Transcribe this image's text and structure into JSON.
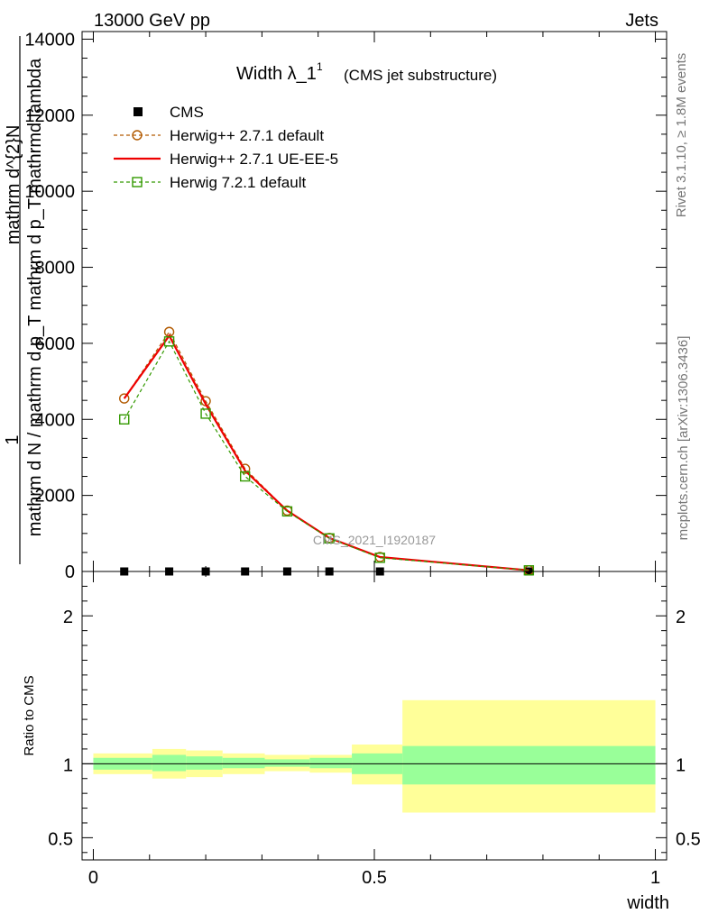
{
  "header": {
    "energy_label": "13000 GeV pp",
    "process_label": "Jets",
    "rivet_label": "Rivet 3.1.10, ≥ 1.8M events",
    "mcplots_label": "mcplots.cern.ch [arXiv:1306.3436]",
    "watermark": "CMS_2021_I1920187"
  },
  "title": {
    "main": "Width λ_1",
    "superscript": "1",
    "sub": "(CMS jet substructure)"
  },
  "ylabel": {
    "numerator_top": "1",
    "numerator": "mathrm d N / mathrm d p_T mathrm d p_T mathrmd lambda",
    "denominator": "mathrm d^{2}N"
  },
  "ratio_ylabel": "Ratio to CMS",
  "xlabel": "width",
  "colors": {
    "cms": "#000000",
    "herwig_default": "#b25a00",
    "herwig_ueee5": "#ee0000",
    "herwig721": "#339900",
    "band_inner": "#99ff99",
    "band_outer": "#ffff99"
  },
  "legend": [
    {
      "key": "cms",
      "label": "CMS"
    },
    {
      "key": "herwig_default",
      "label": "Herwig++ 2.7.1 default"
    },
    {
      "key": "herwig_ueee5",
      "label": "Herwig++ 2.7.1 UE-EE-5"
    },
    {
      "key": "herwig721",
      "label": "Herwig 7.2.1 default"
    }
  ],
  "chart_data": [
    {
      "type": "line",
      "panel": "main",
      "xlim": [
        -0.02,
        1.02
      ],
      "ylim": [
        0,
        14200
      ],
      "yticks": [
        0,
        2000,
        4000,
        6000,
        8000,
        10000,
        12000,
        14000
      ],
      "ytick_labels": [
        "0",
        "2000",
        "4000",
        "6000",
        "8000",
        "10000",
        "12000",
        "14000"
      ],
      "x": [
        0.055,
        0.135,
        0.2,
        0.27,
        0.345,
        0.42,
        0.51,
        0.775
      ],
      "series": [
        {
          "name": "CMS",
          "key": "cms",
          "values": [
            0,
            0,
            0,
            0,
            0,
            0,
            0,
            0
          ]
        },
        {
          "name": "Herwig++ 2.7.1 default",
          "key": "herwig_default",
          "values": [
            4550,
            6300,
            4480,
            2700,
            1600,
            880,
            380,
            30
          ]
        },
        {
          "name": "Herwig++ 2.7.1 UE-EE-5",
          "key": "herwig_ueee5",
          "values": [
            4550,
            6200,
            4400,
            2650,
            1600,
            880,
            380,
            30
          ]
        },
        {
          "name": "Herwig 7.2.1 default",
          "key": "herwig721",
          "values": [
            4000,
            6050,
            4150,
            2500,
            1580,
            870,
            360,
            30
          ]
        }
      ]
    },
    {
      "type": "area",
      "panel": "ratio",
      "xlim": [
        -0.02,
        1.02
      ],
      "ylim": [
        0.35,
        2.3
      ],
      "yticks": [
        0.5,
        1,
        2
      ],
      "ytick_labels": [
        "0.5",
        "1",
        "2"
      ],
      "xticks": [
        0,
        0.5,
        1
      ],
      "xtick_labels": [
        "0",
        "0.5",
        "1"
      ],
      "bins": [
        [
          0.0,
          0.105
        ],
        [
          0.105,
          0.165
        ],
        [
          0.165,
          0.23
        ],
        [
          0.23,
          0.305
        ],
        [
          0.305,
          0.385
        ],
        [
          0.385,
          0.46
        ],
        [
          0.46,
          0.55
        ],
        [
          0.55,
          1.0
        ]
      ],
      "inner_band": [
        [
          0.96,
          1.04
        ],
        [
          0.95,
          1.06
        ],
        [
          0.96,
          1.05
        ],
        [
          0.97,
          1.04
        ],
        [
          0.98,
          1.03
        ],
        [
          0.97,
          1.04
        ],
        [
          0.93,
          1.07
        ],
        [
          0.86,
          1.12
        ]
      ],
      "outer_band": [
        [
          0.93,
          1.07
        ],
        [
          0.9,
          1.1
        ],
        [
          0.91,
          1.09
        ],
        [
          0.93,
          1.07
        ],
        [
          0.95,
          1.06
        ],
        [
          0.94,
          1.06
        ],
        [
          0.86,
          1.13
        ],
        [
          0.67,
          1.43
        ]
      ],
      "reference": 1
    }
  ]
}
